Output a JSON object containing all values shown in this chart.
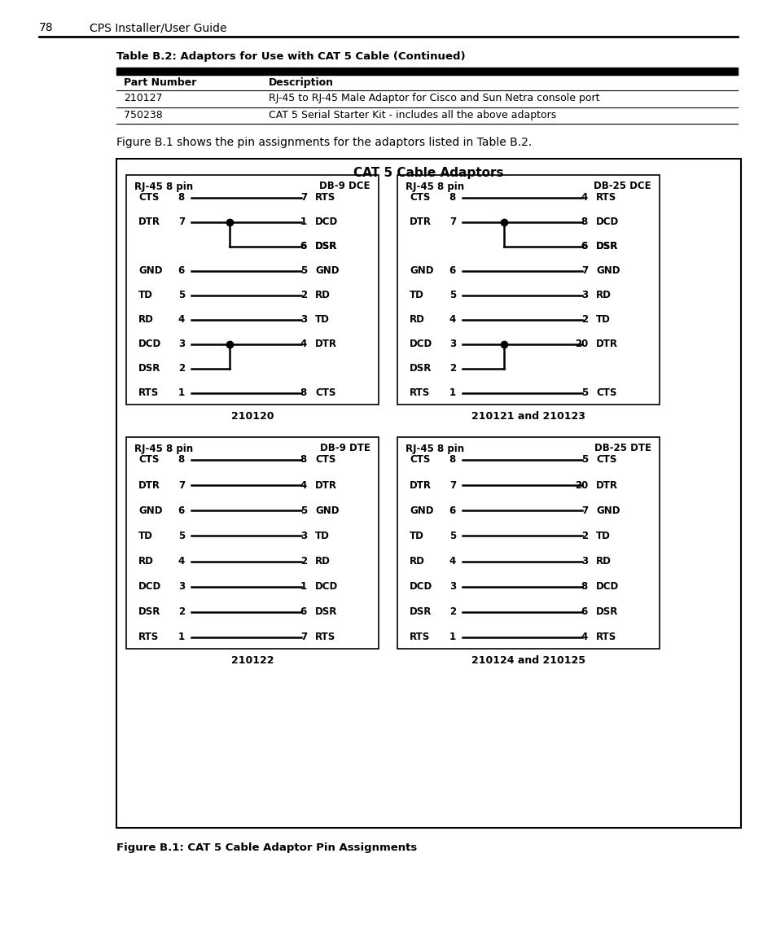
{
  "page_header": "78    CPS Installer/User Guide",
  "table_title": "Table B.2: Adaptors for Use with CAT 5 Cable (Continued)",
  "table_headers": [
    "Part Number",
    "Description"
  ],
  "table_rows": [
    [
      "210127",
      "RJ-45 to RJ-45 Male Adaptor for Cisco and Sun Netra console port"
    ],
    [
      "750238",
      "CAT 5 Serial Starter Kit - includes all the above adaptors"
    ]
  ],
  "intro_text": "Figure B.1 shows the pin assignments for the adaptors listed in Table B.2.",
  "figure_title": "CAT 5 Cable Adaptors",
  "figure_caption": "Figure B.1: CAT 5 Cable Adaptor Pin Assignments",
  "diagrams": [
    {
      "title_left": "RJ-45 8 pin",
      "title_right": "DB-9 DCE",
      "caption": "210120",
      "rows": [
        {
          "left_label": "CTS",
          "left_num": "8",
          "right_num": "7",
          "right_label": "RTS",
          "dot": null,
          "branch_down": false,
          "branch_up": false
        },
        {
          "left_label": "DTR",
          "left_num": "7",
          "right_num": "1",
          "right_label": "DCD",
          "dot": "left",
          "branch_down": false,
          "branch_up": false
        },
        {
          "left_label": "",
          "left_num": "",
          "right_num": "6",
          "right_label": "DSR",
          "dot": null,
          "branch_down": true,
          "branch_up": false
        },
        {
          "left_label": "GND",
          "left_num": "6",
          "right_num": "5",
          "right_label": "GND",
          "dot": null,
          "branch_down": false,
          "branch_up": false
        },
        {
          "left_label": "TD",
          "left_num": "5",
          "right_num": "2",
          "right_label": "RD",
          "dot": null,
          "branch_down": false,
          "branch_up": false
        },
        {
          "left_label": "RD",
          "left_num": "4",
          "right_num": "3",
          "right_label": "TD",
          "dot": null,
          "branch_down": false,
          "branch_up": false
        },
        {
          "left_label": "DCD",
          "left_num": "3",
          "right_num": "4",
          "right_label": "DTR",
          "dot": "left",
          "branch_down": false,
          "branch_up": false
        },
        {
          "left_label": "DSR",
          "left_num": "2",
          "right_num": "",
          "right_label": "",
          "dot": null,
          "branch_down": false,
          "branch_up": true
        },
        {
          "left_label": "RTS",
          "left_num": "1",
          "right_num": "8",
          "right_label": "CTS",
          "dot": null,
          "branch_down": false,
          "branch_up": false
        }
      ]
    },
    {
      "title_left": "RJ-45 8 pin",
      "title_right": "DB-25 DCE",
      "caption": "210121 and 210123",
      "rows": [
        {
          "left_label": "CTS",
          "left_num": "8",
          "right_num": "4",
          "right_label": "RTS",
          "dot": null,
          "branch_down": false,
          "branch_up": false
        },
        {
          "left_label": "DTR",
          "left_num": "7",
          "right_num": "8",
          "right_label": "DCD",
          "dot": "left",
          "branch_down": false,
          "branch_up": false
        },
        {
          "left_label": "",
          "left_num": "",
          "right_num": "6",
          "right_label": "DSR",
          "dot": null,
          "branch_down": true,
          "branch_up": false
        },
        {
          "left_label": "GND",
          "left_num": "6",
          "right_num": "7",
          "right_label": "GND",
          "dot": null,
          "branch_down": false,
          "branch_up": false
        },
        {
          "left_label": "TD",
          "left_num": "5",
          "right_num": "3",
          "right_label": "RD",
          "dot": null,
          "branch_down": false,
          "branch_up": false
        },
        {
          "left_label": "RD",
          "left_num": "4",
          "right_num": "2",
          "right_label": "TD",
          "dot": null,
          "branch_down": false,
          "branch_up": false
        },
        {
          "left_label": "DCD",
          "left_num": "3",
          "right_num": "20",
          "right_label": "DTR",
          "dot": "left",
          "branch_down": false,
          "branch_up": false
        },
        {
          "left_label": "DSR",
          "left_num": "2",
          "right_num": "",
          "right_label": "",
          "dot": null,
          "branch_down": false,
          "branch_up": true
        },
        {
          "left_label": "RTS",
          "left_num": "1",
          "right_num": "5",
          "right_label": "CTS",
          "dot": null,
          "branch_down": false,
          "branch_up": false
        }
      ]
    },
    {
      "title_left": "RJ-45 8 pin",
      "title_right": "DB-9 DTE",
      "caption": "210122",
      "rows": [
        {
          "left_label": "CTS",
          "left_num": "8",
          "right_num": "8",
          "right_label": "CTS",
          "dot": null,
          "branch_down": false,
          "branch_up": false
        },
        {
          "left_label": "DTR",
          "left_num": "7",
          "right_num": "4",
          "right_label": "DTR",
          "dot": null,
          "branch_down": false,
          "branch_up": false
        },
        {
          "left_label": "GND",
          "left_num": "6",
          "right_num": "5",
          "right_label": "GND",
          "dot": null,
          "branch_down": false,
          "branch_up": false
        },
        {
          "left_label": "TD",
          "left_num": "5",
          "right_num": "3",
          "right_label": "TD",
          "dot": null,
          "branch_down": false,
          "branch_up": false
        },
        {
          "left_label": "RD",
          "left_num": "4",
          "right_num": "2",
          "right_label": "RD",
          "dot": null,
          "branch_down": false,
          "branch_up": false
        },
        {
          "left_label": "DCD",
          "left_num": "3",
          "right_num": "1",
          "right_label": "DCD",
          "dot": null,
          "branch_down": false,
          "branch_up": false
        },
        {
          "left_label": "DSR",
          "left_num": "2",
          "right_num": "6",
          "right_label": "DSR",
          "dot": null,
          "branch_down": false,
          "branch_up": false
        },
        {
          "left_label": "RTS",
          "left_num": "1",
          "right_num": "7",
          "right_label": "RTS",
          "dot": null,
          "branch_down": false,
          "branch_up": false
        }
      ]
    },
    {
      "title_left": "RJ-45 8 pin",
      "title_right": "DB-25 DTE",
      "caption": "210124 and 210125",
      "rows": [
        {
          "left_label": "CTS",
          "left_num": "8",
          "right_num": "5",
          "right_label": "CTS",
          "dot": null,
          "branch_down": false,
          "branch_up": false
        },
        {
          "left_label": "DTR",
          "left_num": "7",
          "right_num": "20",
          "right_label": "DTR",
          "dot": null,
          "branch_down": false,
          "branch_up": false
        },
        {
          "left_label": "GND",
          "left_num": "6",
          "right_num": "7",
          "right_label": "GND",
          "dot": null,
          "branch_down": false,
          "branch_up": false
        },
        {
          "left_label": "TD",
          "left_num": "5",
          "right_num": "2",
          "right_label": "TD",
          "dot": null,
          "branch_down": false,
          "branch_up": false
        },
        {
          "left_label": "RD",
          "left_num": "4",
          "right_num": "3",
          "right_label": "RD",
          "dot": null,
          "branch_down": false,
          "branch_up": false
        },
        {
          "left_label": "DCD",
          "left_num": "3",
          "right_num": "8",
          "right_label": "DCD",
          "dot": null,
          "branch_down": false,
          "branch_up": false
        },
        {
          "left_label": "DSR",
          "left_num": "2",
          "right_num": "6",
          "right_label": "DSR",
          "dot": null,
          "branch_down": false,
          "branch_up": false
        },
        {
          "left_label": "RTS",
          "left_num": "1",
          "right_num": "4",
          "right_label": "RTS",
          "dot": null,
          "branch_down": false,
          "branch_up": false
        }
      ]
    }
  ]
}
